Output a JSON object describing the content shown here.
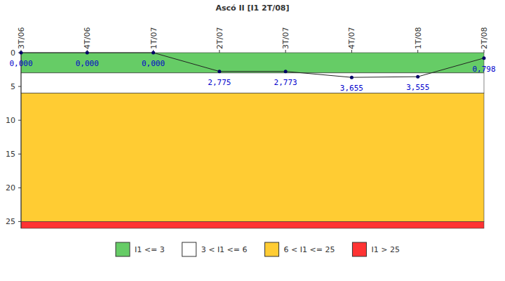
{
  "chart_data": {
    "type": "line",
    "title": "Ascó II [I1 2T/08]",
    "categories": [
      "3T/06",
      "4T/06",
      "1T/07",
      "2T/07",
      "3T/07",
      "4T/07",
      "1T/08",
      "2T/08"
    ],
    "values": [
      0,
      0,
      0,
      2.775,
      2.773,
      3.655,
      3.555,
      0.798
    ],
    "value_labels": [
      "0,000",
      "0,000",
      "0,000",
      "2,775",
      "2,773",
      "3,655",
      "3,555",
      "0,798"
    ],
    "color": "#000066",
    "marker": "circle",
    "data_labels": true,
    "ylim": [
      0,
      26
    ],
    "yticks": [
      0,
      5,
      10,
      15,
      20,
      25
    ],
    "grid": false,
    "legend": "bottom",
    "bands": [
      {
        "from": 0,
        "to": 3,
        "color": "#66cc66",
        "label": "I1 <= 3"
      },
      {
        "from": 3,
        "to": 6,
        "color": "#ffffff",
        "label": "3 < I1 <= 6"
      },
      {
        "from": 6,
        "to": 25,
        "color": "#ffcc33",
        "label": "6 < I1 <= 25"
      },
      {
        "from": 25,
        "to": 26,
        "color": "#ff3333",
        "label": "I1 > 25"
      }
    ]
  }
}
